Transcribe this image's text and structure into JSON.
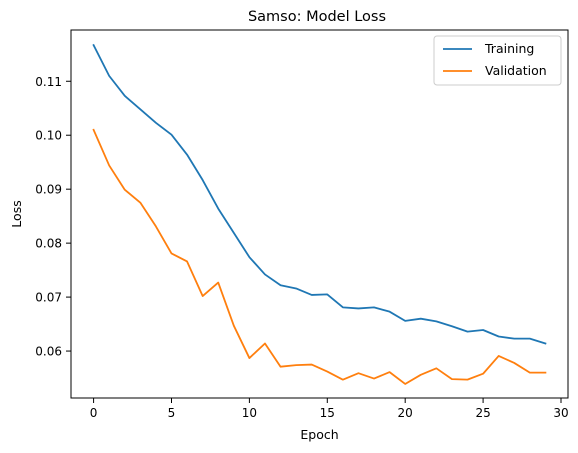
{
  "chart_data": {
    "type": "line",
    "title": "Samso: Model Loss",
    "xlabel": "Epoch",
    "ylabel": "Loss",
    "xlim": [
      -1.45,
      30.45
    ],
    "ylim": [
      0.0513,
      0.1195
    ],
    "x_ticks": [
      0,
      5,
      10,
      15,
      20,
      25,
      30
    ],
    "y_ticks": [
      0.06,
      0.07,
      0.08,
      0.09,
      0.1,
      0.11
    ],
    "y_tick_labels": [
      "0.06",
      "0.07",
      "0.08",
      "0.09",
      "0.10",
      "0.11"
    ],
    "legend_position": "top-right",
    "grid": false,
    "x": [
      0,
      1,
      2,
      3,
      4,
      5,
      6,
      7,
      8,
      9,
      10,
      11,
      12,
      13,
      14,
      15,
      16,
      17,
      18,
      19,
      20,
      21,
      22,
      23,
      24,
      25,
      26,
      27,
      28,
      29
    ],
    "series": [
      {
        "name": "Training",
        "color": "#1f77b4",
        "values": [
          0.1167,
          0.111,
          0.1073,
          0.1048,
          0.1023,
          0.1001,
          0.0964,
          0.0917,
          0.0864,
          0.0819,
          0.0774,
          0.0742,
          0.0722,
          0.0716,
          0.0704,
          0.0705,
          0.0681,
          0.0679,
          0.0681,
          0.0673,
          0.0656,
          0.066,
          0.0655,
          0.0646,
          0.0636,
          0.0639,
          0.0627,
          0.0623,
          0.0623,
          0.0614
        ]
      },
      {
        "name": "Validation",
        "color": "#ff7f0e",
        "values": [
          0.101,
          0.0944,
          0.0899,
          0.0875,
          0.0831,
          0.0781,
          0.0766,
          0.0702,
          0.0727,
          0.0647,
          0.0587,
          0.0614,
          0.0571,
          0.0574,
          0.0575,
          0.0562,
          0.0547,
          0.0559,
          0.0549,
          0.0561,
          0.0539,
          0.0556,
          0.0568,
          0.0548,
          0.0547,
          0.0558,
          0.0591,
          0.0578,
          0.056,
          0.056
        ]
      }
    ]
  }
}
